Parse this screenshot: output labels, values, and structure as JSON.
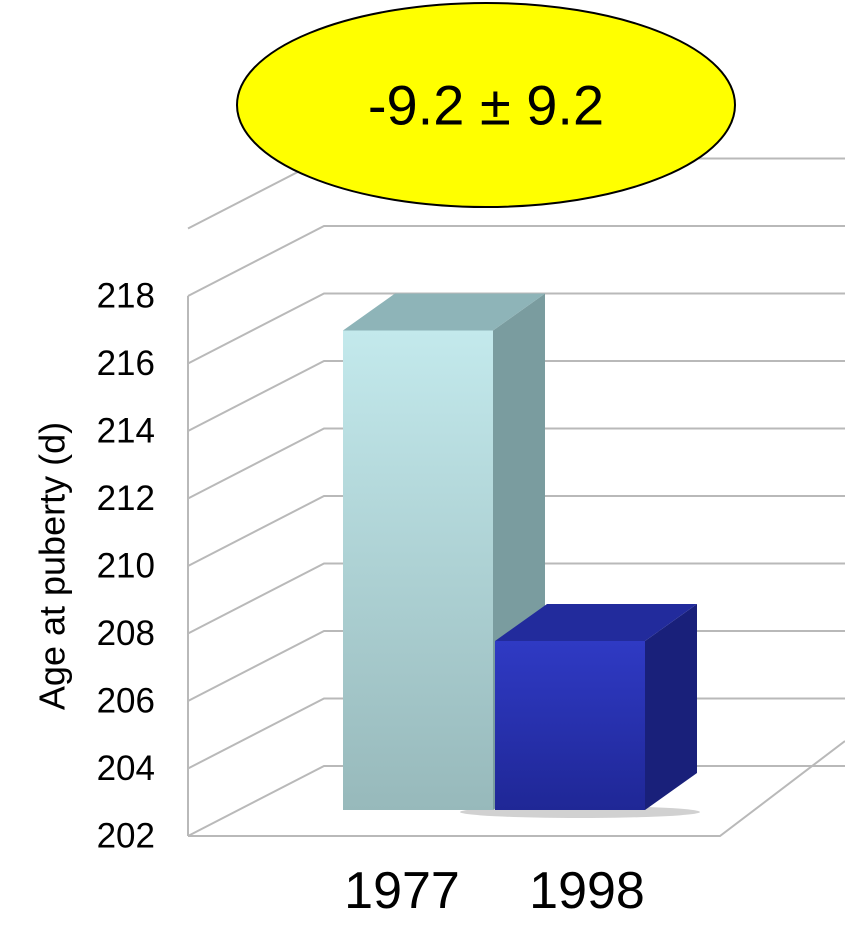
{
  "chart_data": {
    "type": "bar",
    "categories": [
      "1977",
      "1998"
    ],
    "values": [
      216.8,
      207.6
    ],
    "ylabel": "Age at puberty (d)",
    "ylim": [
      202,
      218
    ],
    "yticks": [
      "202",
      "204",
      "206",
      "208",
      "210",
      "212",
      "214",
      "216",
      "218"
    ],
    "grid": true,
    "annotation": "-9.2 ± 9.2",
    "colors": {
      "1977": "#b3dde0",
      "1998": "#2b35b4",
      "annotation_fill": "#ffff00"
    }
  }
}
